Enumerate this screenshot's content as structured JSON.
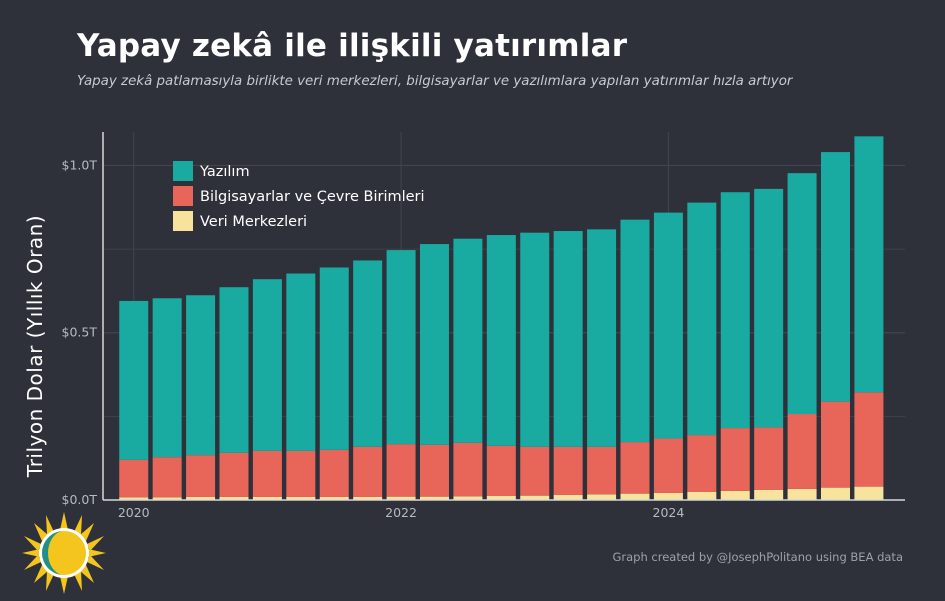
{
  "header": {
    "title": "Yapay zekâ ile ilişkili yatırımlar",
    "subtitle": "Yapay zekâ patlamasıyla birlikte veri merkezleri, bilgisayarlar ve yazılımlara yapılan yatırımlar hızla artıyor"
  },
  "source_note": "Graph created by @JosephPolitano using BEA data",
  "colors": {
    "software": "#19aba2",
    "computers": "#e8655a",
    "datacenters": "#f7e39b",
    "background": "#2e313a",
    "grid": "#41454f",
    "axis": "#d8d8d8",
    "text": "#b7b9bf"
  },
  "chart_data": {
    "type": "bar",
    "stacked": true,
    "title": "Yapay zekâ ile ilişkili yatırımlar",
    "ylabel": "Trilyon Dolar (Yıllık Oran)",
    "xlabel": "",
    "ylim": [
      0,
      1.1
    ],
    "y_ticks": [
      {
        "value": 0,
        "label": "$0.0T"
      },
      {
        "value": 0.5,
        "label": "$0.5T"
      },
      {
        "value": 1.0,
        "label": "$1.0T"
      }
    ],
    "x_ticks": [
      {
        "value": 2020.0,
        "label": "2020"
      },
      {
        "value": 2022.0,
        "label": "2022"
      },
      {
        "value": 2024.0,
        "label": "2024"
      }
    ],
    "x_range": [
      2019.77,
      2025.77
    ],
    "legend_position": "top-left",
    "x": [
      2020.0,
      2020.25,
      2020.5,
      2020.75,
      2021.0,
      2021.25,
      2021.5,
      2021.75,
      2022.0,
      2022.25,
      2022.5,
      2022.75,
      2023.0,
      2023.25,
      2023.5,
      2023.75,
      2024.0,
      2024.25,
      2024.5,
      2024.75,
      2025.0,
      2025.25,
      2025.5
    ],
    "series": [
      {
        "name": "Veri Merkezleri",
        "key": "datacenters",
        "values": [
          0.008,
          0.008,
          0.009,
          0.009,
          0.009,
          0.009,
          0.009,
          0.009,
          0.01,
          0.01,
          0.011,
          0.012,
          0.013,
          0.015,
          0.017,
          0.019,
          0.021,
          0.024,
          0.027,
          0.03,
          0.033,
          0.037,
          0.04
        ]
      },
      {
        "name": "Bilgisayarlar ve Çevre Birimleri",
        "key": "computers",
        "values": [
          0.112,
          0.12,
          0.125,
          0.132,
          0.138,
          0.138,
          0.141,
          0.15,
          0.157,
          0.155,
          0.16,
          0.15,
          0.146,
          0.144,
          0.142,
          0.154,
          0.163,
          0.17,
          0.188,
          0.187,
          0.224,
          0.257,
          0.282
        ]
      },
      {
        "name": "Yazılım",
        "key": "software",
        "values": [
          0.475,
          0.475,
          0.478,
          0.495,
          0.513,
          0.53,
          0.545,
          0.557,
          0.58,
          0.6,
          0.61,
          0.63,
          0.64,
          0.645,
          0.65,
          0.665,
          0.675,
          0.695,
          0.705,
          0.713,
          0.72,
          0.746,
          0.765
        ]
      }
    ]
  },
  "legend": [
    {
      "label": "Yazılım",
      "key": "software"
    },
    {
      "label": "Bilgisayarlar ve Çevre Birimleri",
      "key": "computers"
    },
    {
      "label": "Veri Merkezleri",
      "key": "datacenters"
    }
  ]
}
